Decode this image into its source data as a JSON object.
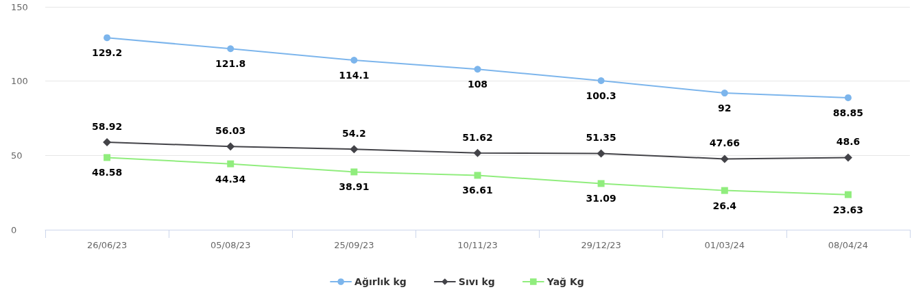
{
  "chart_data": {
    "type": "line",
    "categories": [
      "26/06/23",
      "05/08/23",
      "25/09/23",
      "10/11/23",
      "29/12/23",
      "01/03/24",
      "08/04/24"
    ],
    "series": [
      {
        "name": "Ağırlık kg",
        "color": "#7cb5ec",
        "marker": "circle",
        "values": [
          129.2,
          121.8,
          114.1,
          108,
          100.3,
          92,
          88.85
        ]
      },
      {
        "name": "Sıvı kg",
        "color": "#434348",
        "marker": "diamond",
        "values": [
          58.92,
          56.03,
          54.2,
          51.62,
          51.35,
          47.66,
          48.6
        ]
      },
      {
        "name": "Yağ Kg",
        "color": "#90ed7d",
        "marker": "square",
        "values": [
          48.58,
          44.34,
          38.91,
          36.61,
          31.09,
          26.4,
          23.63
        ]
      }
    ],
    "ylim": [
      0,
      150
    ],
    "yticks": [
      0,
      50,
      100,
      150
    ],
    "grid": "y",
    "legend": "bottom",
    "data_labels": true
  }
}
